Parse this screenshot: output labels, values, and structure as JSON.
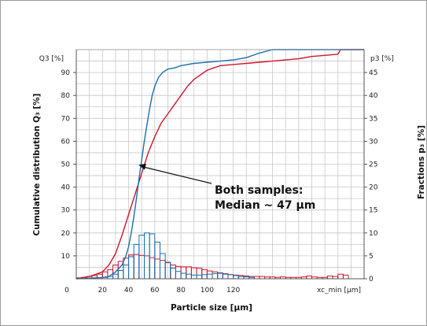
{
  "chart_data": {
    "type": "line",
    "xlabel": "Particle size [µm]",
    "x_tick_end_label": "xc_min [µm]",
    "ylabel_left": "Cumulative distribution Q₃ [%]",
    "ylabel_left_unit": "Q3 [%]",
    "ylabel_right": "Fractions p₃ [%]",
    "ylabel_right_unit": "p3 [%]",
    "xlim": [
      0,
      220
    ],
    "ylim_left": [
      0,
      100
    ],
    "ylim_right": [
      0,
      50
    ],
    "x_ticks": [
      0,
      20,
      40,
      60,
      80,
      100,
      120
    ],
    "y_ticks_left": [
      10,
      20,
      30,
      40,
      50,
      60,
      70,
      80,
      90
    ],
    "y_ticks_right": [
      0,
      5,
      10,
      15,
      20,
      25,
      30,
      35,
      40,
      45
    ],
    "grid": true,
    "annotation": {
      "lines": [
        "Both samples:",
        "Median ~ 47 µm"
      ],
      "points_to": {
        "x": 47,
        "y": 50
      }
    },
    "colors": {
      "red": "#d2142c",
      "blue": "#1b6fae",
      "grid": "#c8c8c8"
    },
    "cumulative_series": [
      {
        "color": "red",
        "x": [
          0,
          10,
          20,
          25,
          30,
          35,
          40,
          45,
          50,
          55,
          60,
          65,
          70,
          75,
          80,
          85,
          90,
          95,
          100,
          110,
          120,
          130,
          140,
          150,
          160,
          170,
          180,
          190,
          200,
          202,
          210,
          220
        ],
        "y": [
          0,
          1,
          3,
          6,
          11,
          19,
          28,
          37,
          46,
          55,
          62,
          68,
          72,
          76,
          80,
          84,
          87,
          89,
          91,
          93,
          93.5,
          94,
          94.5,
          95,
          95.5,
          96,
          97,
          97.5,
          98,
          100,
          100,
          100
        ]
      },
      {
        "color": "blue",
        "x": [
          0,
          20,
          25,
          30,
          35,
          38,
          40,
          42,
          44,
          46,
          48,
          50,
          52,
          54,
          56,
          58,
          60,
          63,
          66,
          70,
          75,
          80,
          90,
          100,
          110,
          120,
          130,
          140,
          150,
          160,
          220
        ],
        "y": [
          0,
          0.5,
          1,
          3,
          6,
          10,
          14,
          20,
          27,
          35,
          44,
          52,
          60,
          67,
          74,
          80,
          84,
          88,
          90,
          91.5,
          92,
          93,
          94,
          94.5,
          95,
          95.5,
          96.5,
          98.5,
          100,
          100,
          100
        ]
      }
    ],
    "fraction_series": [
      {
        "color": "red",
        "bin_width": 4,
        "x": [
          2,
          6,
          10,
          14,
          18,
          22,
          26,
          30,
          34,
          38,
          42,
          46,
          50,
          54,
          58,
          62,
          66,
          70,
          74,
          78,
          82,
          86,
          90,
          94,
          98,
          102,
          106,
          110,
          114,
          118,
          122,
          126,
          130,
          134,
          138,
          142,
          146,
          150,
          154,
          158,
          162,
          166,
          170,
          174,
          178,
          182,
          186,
          190,
          194,
          198,
          202,
          206,
          210
        ],
        "y": [
          0.2,
          0.3,
          0.5,
          0.7,
          1,
          1.5,
          2,
          3,
          3.8,
          4.5,
          5.2,
          5.3,
          5.1,
          5,
          4.6,
          4.3,
          4,
          3.6,
          3,
          2.7,
          2.6,
          2.6,
          2.4,
          2.3,
          2,
          1.7,
          1.5,
          1.3,
          1.1,
          0.9,
          0.8,
          0.7,
          0.6,
          0.5,
          0.5,
          0.5,
          0.4,
          0.4,
          0.3,
          0.4,
          0.3,
          0.3,
          0.3,
          0.4,
          0.6,
          0.4,
          0.3,
          0.3,
          0.6,
          0.5,
          1,
          0.8,
          0
        ]
      },
      {
        "color": "blue",
        "bin_width": 4,
        "x": [
          2,
          6,
          10,
          14,
          18,
          22,
          26,
          30,
          34,
          38,
          42,
          46,
          50,
          54,
          58,
          62,
          66,
          70,
          74,
          78,
          82,
          86,
          90,
          94,
          98,
          102,
          106,
          110,
          114,
          118,
          122,
          126,
          130,
          134
        ],
        "y": [
          0,
          0,
          0,
          0,
          0,
          0.3,
          0.5,
          1,
          1.8,
          3,
          4.8,
          7.5,
          9.5,
          10,
          9.8,
          8,
          5.5,
          3.5,
          2.3,
          1.6,
          1.2,
          1,
          0.8,
          0.8,
          0.9,
          1,
          1.1,
          1.2,
          1,
          0.9,
          0.7,
          0.5,
          0.4,
          0.3
        ]
      }
    ]
  }
}
